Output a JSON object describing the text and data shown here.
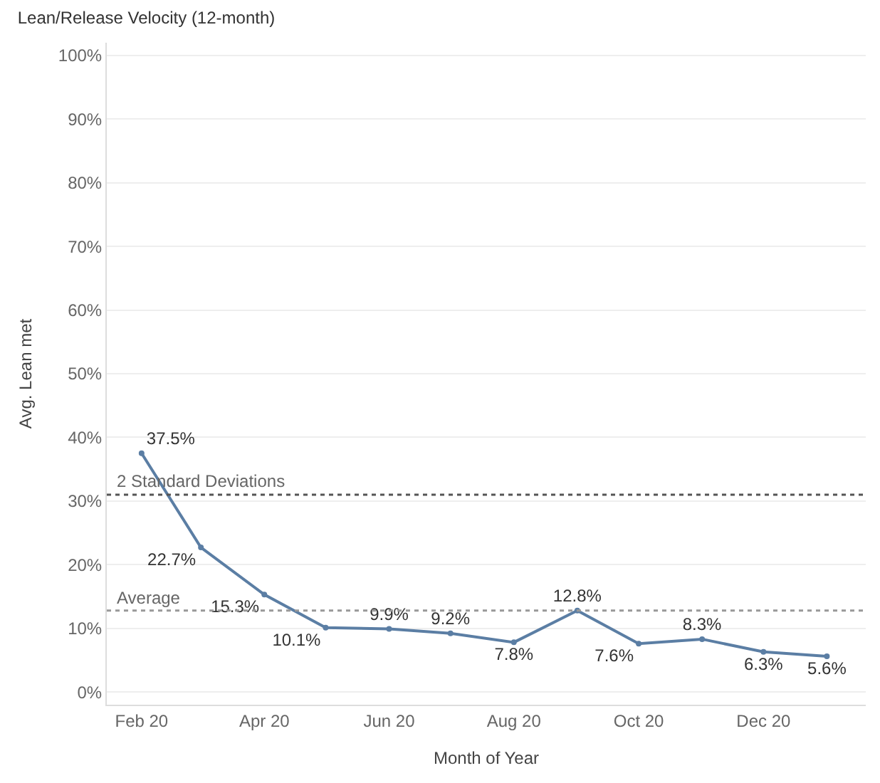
{
  "chart_data": {
    "type": "line",
    "title": "Lean/Release Velocity (12-month)",
    "xlabel": "Month of Year",
    "ylabel": "Avg. Lean met",
    "x": [
      "2020-02",
      "2020-03",
      "2020-04",
      "2020-05",
      "2020-06",
      "2020-07",
      "2020-08",
      "2020-09",
      "2020-10",
      "2020-11",
      "2020-12",
      "2021-01"
    ],
    "series": [
      {
        "color": "#5b7ea4",
        "values": [
          37.5,
          22.7,
          15.3,
          10.1,
          9.9,
          9.2,
          7.8,
          12.8,
          7.6,
          8.3,
          6.3,
          5.6
        ],
        "value_labels": [
          "37.5%",
          "22.7%",
          "15.3%",
          "10.1%",
          "9.9%",
          "9.2%",
          "7.8%",
          "12.8%",
          "7.6%",
          "8.3%",
          "6.3%",
          "5.6%"
        ]
      }
    ],
    "xlim": [
      "2020-01-15",
      "2021-01-20"
    ],
    "xticks": [
      {
        "value": "2020-02",
        "label": "Feb 20"
      },
      {
        "value": "2020-04",
        "label": "Apr 20"
      },
      {
        "value": "2020-06",
        "label": "Jun 20"
      },
      {
        "value": "2020-08",
        "label": "Aug 20"
      },
      {
        "value": "2020-10",
        "label": "Oct 20"
      },
      {
        "value": "2020-12",
        "label": "Dec 20"
      }
    ],
    "ylim": [
      -2,
      102
    ],
    "yticks": [
      {
        "value": 0,
        "label": "0%"
      },
      {
        "value": 10,
        "label": "10%"
      },
      {
        "value": 20,
        "label": "20%"
      },
      {
        "value": 30,
        "label": "30%"
      },
      {
        "value": 40,
        "label": "40%"
      },
      {
        "value": 50,
        "label": "50%"
      },
      {
        "value": 60,
        "label": "60%"
      },
      {
        "value": 70,
        "label": "70%"
      },
      {
        "value": 80,
        "label": "80%"
      },
      {
        "value": 90,
        "label": "90%"
      },
      {
        "value": 100,
        "label": "100%"
      }
    ],
    "ref_lines": [
      {
        "axis": "y",
        "value": 31,
        "label": "2 Standard Deviations",
        "color": "#555555",
        "line_style": "dotted"
      },
      {
        "axis": "y",
        "value": 12.8,
        "label": "Average",
        "color": "#999999",
        "line_style": "dotted"
      }
    ],
    "grid": "y",
    "marker": "circle",
    "line_style": "solid",
    "legend": false
  }
}
